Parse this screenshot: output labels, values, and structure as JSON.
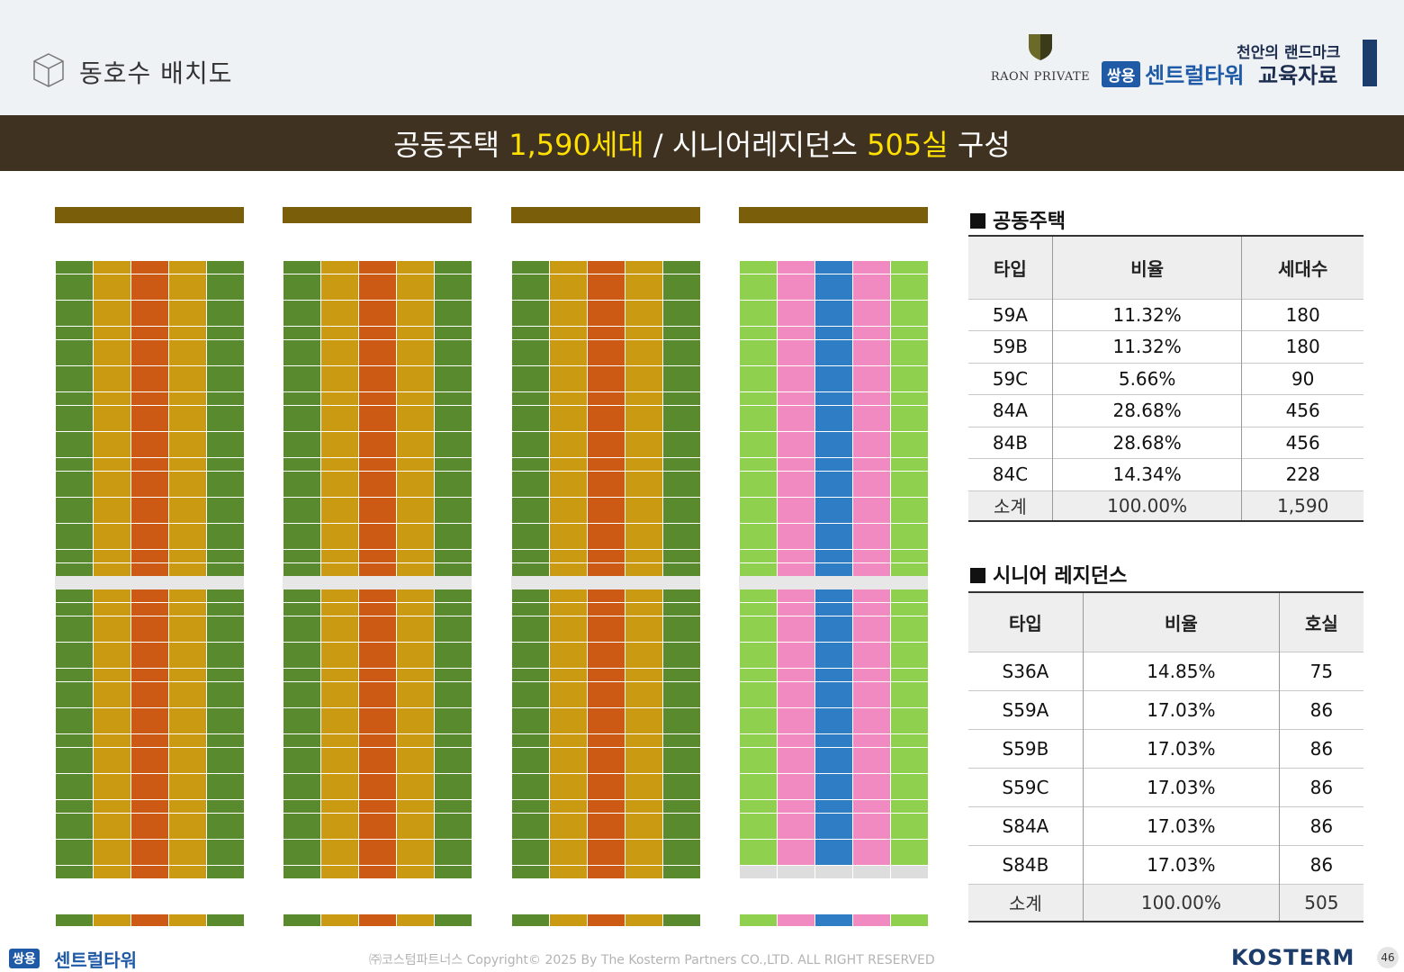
{
  "header": {
    "page_title": "동호수 배치도",
    "partner_logo": "RAON PRIVATE",
    "brand_sub": "천안의 랜드마크",
    "brand_badge": "쌍용",
    "brand_name": "센트럴타워",
    "brand_edu": "교육자료"
  },
  "banner": {
    "p1": "공동주택 ",
    "p2": "1,590세대",
    "p3": " / 시니어레지던스 ",
    "p4": "505실",
    "p5": " 구성"
  },
  "colors": {
    "type_dark_green": "#5a8a2e",
    "type_mustard": "#c99a12",
    "type_orange": "#cc5a14",
    "senior_light_green": "#8fd14f",
    "senior_pink": "#f08ac0",
    "senior_blue": "#2f7dc4",
    "banner_bg": "#3f3221",
    "banner_highlight": "#ffe000"
  },
  "apartment_table": {
    "title": "공동주택",
    "headers": [
      "타입",
      "비율",
      "세대수"
    ],
    "rows": [
      [
        "59A",
        "11.32%",
        "180"
      ],
      [
        "59B",
        "11.32%",
        "180"
      ],
      [
        "59C",
        "5.66%",
        "90"
      ],
      [
        "84A",
        "28.68%",
        "456"
      ],
      [
        "84B",
        "28.68%",
        "456"
      ],
      [
        "84C",
        "14.34%",
        "228"
      ]
    ],
    "subtotal": [
      "소계",
      "100.00%",
      "1,590"
    ]
  },
  "senior_table": {
    "title": "시니어 레지던스",
    "headers": [
      "타입",
      "비율",
      "호실"
    ],
    "rows": [
      [
        "S36A",
        "14.85%",
        "75"
      ],
      [
        "S59A",
        "17.03%",
        "86"
      ],
      [
        "S59B",
        "17.03%",
        "86"
      ],
      [
        "S59C",
        "17.03%",
        "86"
      ],
      [
        "S84A",
        "17.03%",
        "86"
      ],
      [
        "S84B",
        "17.03%",
        "86"
      ]
    ],
    "subtotal": [
      "소계",
      "100.00%",
      "505"
    ]
  },
  "footer": {
    "badge": "쌍용",
    "brand": "센트럴타워",
    "copyright": "㈜코스텀파트너스 Copyright© 2025 By The Kosterm Partners CO.,LTD. ALL RIGHT RESERVED",
    "company": "KOSTERM",
    "page_number": "46"
  }
}
